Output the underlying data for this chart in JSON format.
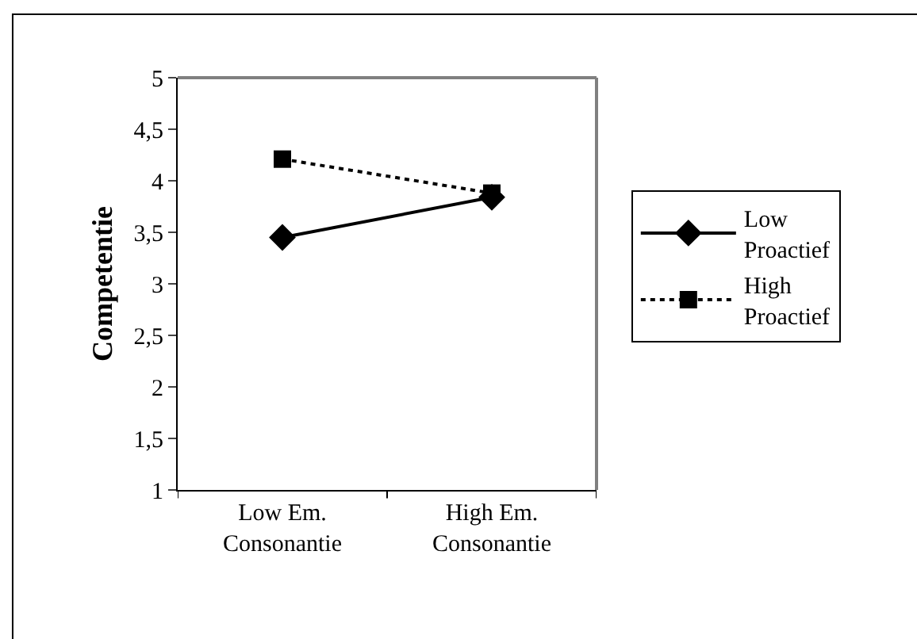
{
  "chart_data": {
    "type": "line",
    "ylabel": "Competentie",
    "categories": [
      "Low Em. Consonantie",
      "High Em. Consonantie"
    ],
    "series": [
      {
        "name": "Low Proactief",
        "color": "#000000",
        "values": [
          3.45,
          3.84
        ],
        "marker": "diamond",
        "line_style": "solid"
      },
      {
        "name": "High Proactief",
        "color": "#000000",
        "values": [
          4.21,
          3.88
        ],
        "marker": "square",
        "line_style": "dotted"
      }
    ],
    "ylim": [
      1,
      5
    ],
    "yticks": [
      1,
      {
        "value": 1.5,
        "label": "1,5"
      },
      2,
      {
        "value": 2.5,
        "label": "2,5"
      },
      3,
      {
        "value": 3.5,
        "label": "3,5"
      },
      4,
      {
        "value": 4.5,
        "label": "4,5"
      },
      5
    ],
    "legend": "right"
  }
}
